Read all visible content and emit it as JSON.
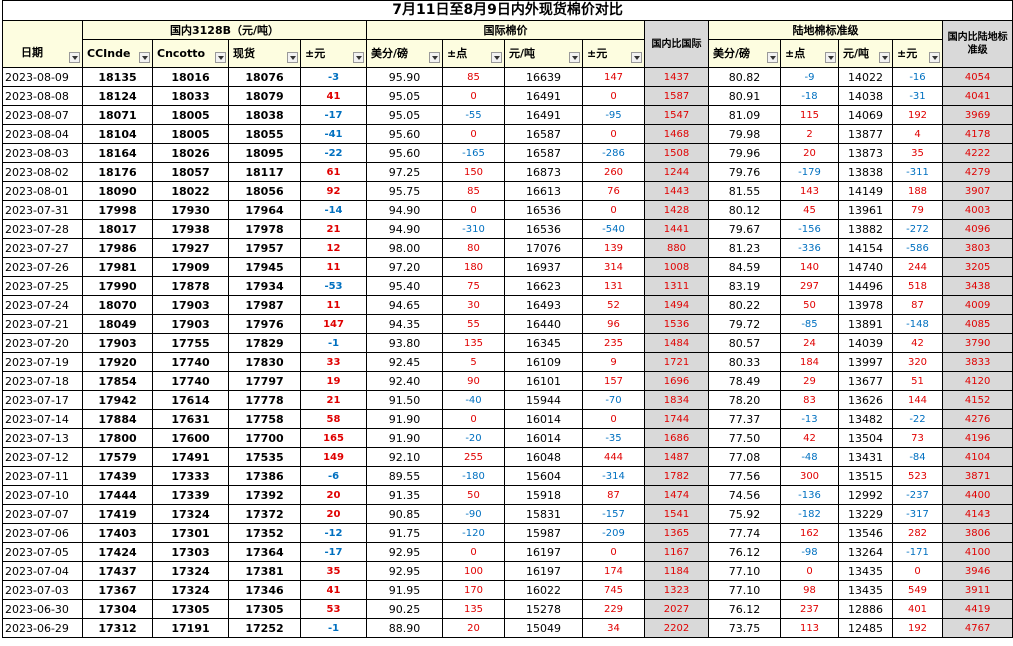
{
  "header": {
    "title": "7月11日至8月9日内外现货棉价对比",
    "groups": [
      "国内3128B（元/吨）",
      "国际棉价",
      "国内比国际",
      "陆地棉标准级",
      "国内比陆地标准级"
    ],
    "columns": [
      "日期",
      "CCInde",
      "Cncotto",
      "现货",
      "±元",
      "美分/磅",
      "±点",
      "元/吨",
      "±元",
      "美分/磅",
      "±点",
      "元/吨",
      "±元"
    ]
  },
  "table": {
    "rows": [
      [
        "2023-08-09",
        "18135",
        "18016",
        "18076",
        "-3",
        "95.90",
        "85",
        "16639",
        "147",
        "1437",
        "80.82",
        "-9",
        "14022",
        "-16",
        "4054"
      ],
      [
        "2023-08-08",
        "18124",
        "18033",
        "18079",
        "41",
        "95.05",
        "0",
        "16491",
        "0",
        "1587",
        "80.91",
        "-18",
        "14038",
        "-31",
        "4041"
      ],
      [
        "2023-08-07",
        "18071",
        "18005",
        "18038",
        "-17",
        "95.05",
        "-55",
        "16491",
        "-95",
        "1547",
        "81.09",
        "115",
        "14069",
        "192",
        "3969"
      ],
      [
        "2023-08-04",
        "18104",
        "18005",
        "18055",
        "-41",
        "95.60",
        "0",
        "16587",
        "0",
        "1468",
        "79.98",
        "2",
        "13877",
        "4",
        "4178"
      ],
      [
        "2023-08-03",
        "18164",
        "18026",
        "18095",
        "-22",
        "95.60",
        "-165",
        "16587",
        "-286",
        "1508",
        "79.96",
        "20",
        "13873",
        "35",
        "4222"
      ],
      [
        "2023-08-02",
        "18176",
        "18057",
        "18117",
        "61",
        "97.25",
        "150",
        "16873",
        "260",
        "1244",
        "79.76",
        "-179",
        "13838",
        "-311",
        "4279"
      ],
      [
        "2023-08-01",
        "18090",
        "18022",
        "18056",
        "92",
        "95.75",
        "85",
        "16613",
        "76",
        "1443",
        "81.55",
        "143",
        "14149",
        "188",
        "3907"
      ],
      [
        "2023-07-31",
        "17998",
        "17930",
        "17964",
        "-14",
        "94.90",
        "0",
        "16536",
        "0",
        "1428",
        "80.12",
        "45",
        "13961",
        "79",
        "4003"
      ],
      [
        "2023-07-28",
        "18017",
        "17938",
        "17978",
        "21",
        "94.90",
        "-310",
        "16536",
        "-540",
        "1441",
        "79.67",
        "-156",
        "13882",
        "-272",
        "4096"
      ],
      [
        "2023-07-27",
        "17986",
        "17927",
        "17957",
        "12",
        "98.00",
        "80",
        "17076",
        "139",
        "880",
        "81.23",
        "-336",
        "14154",
        "-586",
        "3803"
      ],
      [
        "2023-07-26",
        "17981",
        "17909",
        "17945",
        "11",
        "97.20",
        "180",
        "16937",
        "314",
        "1008",
        "84.59",
        "140",
        "14740",
        "244",
        "3205"
      ],
      [
        "2023-07-25",
        "17990",
        "17878",
        "17934",
        "-53",
        "95.40",
        "75",
        "16623",
        "131",
        "1311",
        "83.19",
        "297",
        "14496",
        "518",
        "3438"
      ],
      [
        "2023-07-24",
        "18070",
        "17903",
        "17987",
        "11",
        "94.65",
        "30",
        "16493",
        "52",
        "1494",
        "80.22",
        "50",
        "13978",
        "87",
        "4009"
      ],
      [
        "2023-07-21",
        "18049",
        "17903",
        "17976",
        "147",
        "94.35",
        "55",
        "16440",
        "96",
        "1536",
        "79.72",
        "-85",
        "13891",
        "-148",
        "4085"
      ],
      [
        "2023-07-20",
        "17903",
        "17755",
        "17829",
        "-1",
        "93.80",
        "135",
        "16345",
        "235",
        "1484",
        "80.57",
        "24",
        "14039",
        "42",
        "3790"
      ],
      [
        "2023-07-19",
        "17920",
        "17740",
        "17830",
        "33",
        "92.45",
        "5",
        "16109",
        "9",
        "1721",
        "80.33",
        "184",
        "13997",
        "320",
        "3833"
      ],
      [
        "2023-07-18",
        "17854",
        "17740",
        "17797",
        "19",
        "92.40",
        "90",
        "16101",
        "157",
        "1696",
        "78.49",
        "29",
        "13677",
        "51",
        "4120"
      ],
      [
        "2023-07-17",
        "17942",
        "17614",
        "17778",
        "21",
        "91.50",
        "-40",
        "15944",
        "-70",
        "1834",
        "78.20",
        "83",
        "13626",
        "144",
        "4152"
      ],
      [
        "2023-07-14",
        "17884",
        "17631",
        "17758",
        "58",
        "91.90",
        "0",
        "16014",
        "0",
        "1744",
        "77.37",
        "-13",
        "13482",
        "-22",
        "4276"
      ],
      [
        "2023-07-13",
        "17800",
        "17600",
        "17700",
        "165",
        "91.90",
        "-20",
        "16014",
        "-35",
        "1686",
        "77.50",
        "42",
        "13504",
        "73",
        "4196"
      ],
      [
        "2023-07-12",
        "17579",
        "17491",
        "17535",
        "149",
        "92.10",
        "255",
        "16048",
        "444",
        "1487",
        "77.08",
        "-48",
        "13431",
        "-84",
        "4104"
      ],
      [
        "2023-07-11",
        "17439",
        "17333",
        "17386",
        "-6",
        "89.55",
        "-180",
        "15604",
        "-314",
        "1782",
        "77.56",
        "300",
        "13515",
        "523",
        "3871"
      ],
      [
        "2023-07-10",
        "17444",
        "17339",
        "17392",
        "20",
        "91.35",
        "50",
        "15918",
        "87",
        "1474",
        "74.56",
        "-136",
        "12992",
        "-237",
        "4400"
      ],
      [
        "2023-07-07",
        "17419",
        "17324",
        "17372",
        "20",
        "90.85",
        "-90",
        "15831",
        "-157",
        "1541",
        "75.92",
        "-182",
        "13229",
        "-317",
        "4143"
      ],
      [
        "2023-07-06",
        "17403",
        "17301",
        "17352",
        "-12",
        "91.75",
        "-120",
        "15987",
        "-209",
        "1365",
        "77.74",
        "162",
        "13546",
        "282",
        "3806"
      ],
      [
        "2023-07-05",
        "17424",
        "17303",
        "17364",
        "-17",
        "92.95",
        "0",
        "16197",
        "0",
        "1167",
        "76.12",
        "-98",
        "13264",
        "-171",
        "4100"
      ],
      [
        "2023-07-04",
        "17437",
        "17324",
        "17381",
        "35",
        "92.95",
        "100",
        "16197",
        "174",
        "1184",
        "77.10",
        "0",
        "13435",
        "0",
        "3946"
      ],
      [
        "2023-07-03",
        "17367",
        "17324",
        "17346",
        "41",
        "91.95",
        "170",
        "16022",
        "745",
        "1323",
        "77.10",
        "98",
        "13435",
        "549",
        "3911"
      ],
      [
        "2023-06-30",
        "17304",
        "17305",
        "17305",
        "53",
        "90.25",
        "135",
        "15278",
        "229",
        "2027",
        "76.12",
        "237",
        "12886",
        "401",
        "4419"
      ],
      [
        "2023-06-29",
        "17312",
        "17191",
        "17252",
        "-1",
        "88.90",
        "20",
        "15049",
        "34",
        "2202",
        "73.75",
        "113",
        "12485",
        "192",
        "4767"
      ]
    ]
  }
}
